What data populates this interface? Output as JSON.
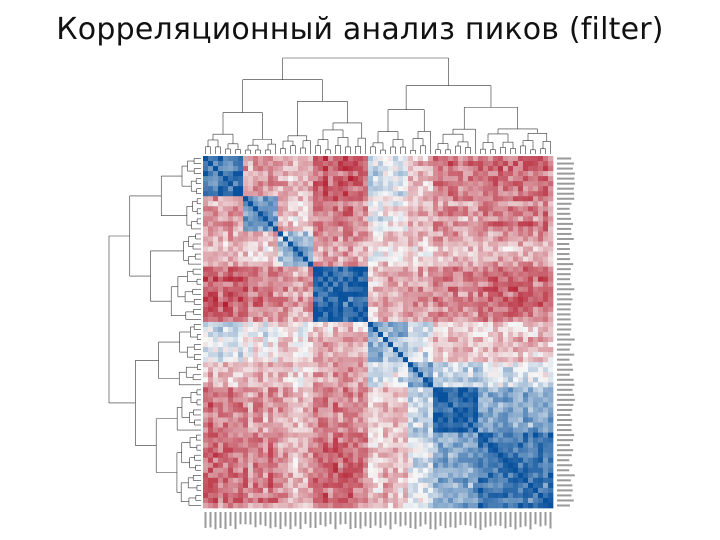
{
  "slide": {
    "title": "Корреляционный анализ пиков (filter)"
  },
  "chart_data": {
    "type": "heatmap",
    "title": "",
    "xlabel": "",
    "ylabel": "",
    "n_features": 70,
    "clusters": [
      {
        "start": 0,
        "end": 8
      },
      {
        "start": 8,
        "end": 15
      },
      {
        "start": 15,
        "end": 22
      },
      {
        "start": 22,
        "end": 33
      },
      {
        "start": 33,
        "end": 41
      },
      {
        "start": 41,
        "end": 46
      },
      {
        "start": 46,
        "end": 55
      },
      {
        "start": 55,
        "end": 70
      }
    ],
    "within_cluster_correlation": [
      0.7,
      0.55,
      0.35,
      0.85,
      0.4,
      0.5,
      0.85,
      0.8
    ],
    "between_cluster_correlation": [
      [
        null,
        -0.4,
        -0.3,
        -0.7,
        0.1,
        -0.3,
        -0.6,
        -0.6
      ],
      [
        -0.4,
        null,
        -0.2,
        -0.5,
        0.0,
        -0.3,
        -0.4,
        -0.5
      ],
      [
        -0.3,
        -0.2,
        null,
        -0.4,
        -0.1,
        -0.2,
        -0.3,
        -0.3
      ],
      [
        -0.7,
        -0.5,
        -0.4,
        null,
        -0.3,
        -0.4,
        -0.5,
        -0.6
      ],
      [
        0.1,
        0.0,
        -0.1,
        -0.3,
        null,
        0.1,
        -0.2,
        -0.2
      ],
      [
        -0.3,
        -0.3,
        -0.2,
        -0.4,
        0.1,
        null,
        0.2,
        0.1
      ],
      [
        -0.6,
        -0.4,
        -0.3,
        -0.5,
        -0.2,
        0.2,
        null,
        0.5
      ],
      [
        -0.6,
        -0.5,
        -0.3,
        -0.6,
        -0.2,
        0.1,
        0.5,
        null
      ]
    ],
    "value_range": [
      -1,
      1
    ],
    "colormap": {
      "negative": "#b2182b",
      "zero": "#f7f7f7",
      "positive": "#08519c"
    },
    "row_dendrogram": "left",
    "column_dendrogram": "top",
    "row_labels": "right",
    "column_labels": "bottom",
    "legend": "none"
  }
}
